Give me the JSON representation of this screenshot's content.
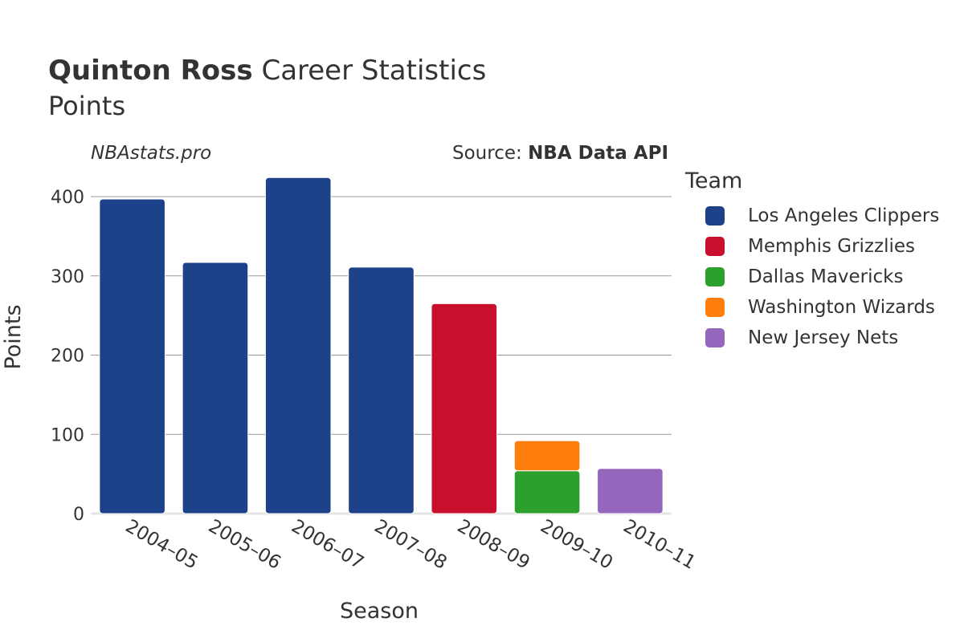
{
  "header": {
    "player": "Quinton Ross",
    "title_rest": "Career Statistics",
    "subtitle": "Points",
    "site": "NBAstats.pro",
    "source_prefix": "Source: ",
    "source_name": "NBA Data API"
  },
  "legend": {
    "title": "Team",
    "items": [
      {
        "label": "Los Angeles Clippers",
        "color": "#1d428a"
      },
      {
        "label": "Memphis Grizzlies",
        "color": "#c8102e"
      },
      {
        "label": "Dallas Mavericks",
        "color": "#2ca02c"
      },
      {
        "label": "Washington Wizards",
        "color": "#ff7f0e"
      },
      {
        "label": "New Jersey Nets",
        "color": "#9467bd"
      }
    ]
  },
  "chart_data": {
    "type": "bar",
    "stacked": true,
    "xlabel": "Season",
    "ylabel": "Points",
    "ylim": [
      0,
      420
    ],
    "yticks": [
      0,
      100,
      200,
      300,
      400
    ],
    "grid": true,
    "categories": [
      "2004–05",
      "2005–06",
      "2006–07",
      "2007–08",
      "2008–09",
      "2009–10",
      "2010–11"
    ],
    "series": [
      {
        "name": "Los Angeles Clippers",
        "color": "#1d428a",
        "values": [
          397,
          317,
          424,
          311,
          0,
          0,
          0
        ]
      },
      {
        "name": "Memphis Grizzlies",
        "color": "#c8102e",
        "values": [
          0,
          0,
          0,
          0,
          265,
          0,
          0
        ]
      },
      {
        "name": "Dallas Mavericks",
        "color": "#2ca02c",
        "values": [
          0,
          0,
          0,
          0,
          0,
          54,
          0
        ]
      },
      {
        "name": "Washington Wizards",
        "color": "#ff7f0e",
        "values": [
          0,
          0,
          0,
          0,
          0,
          38,
          0
        ]
      },
      {
        "name": "New Jersey Nets",
        "color": "#9467bd",
        "values": [
          0,
          0,
          0,
          0,
          0,
          0,
          57
        ]
      }
    ]
  }
}
